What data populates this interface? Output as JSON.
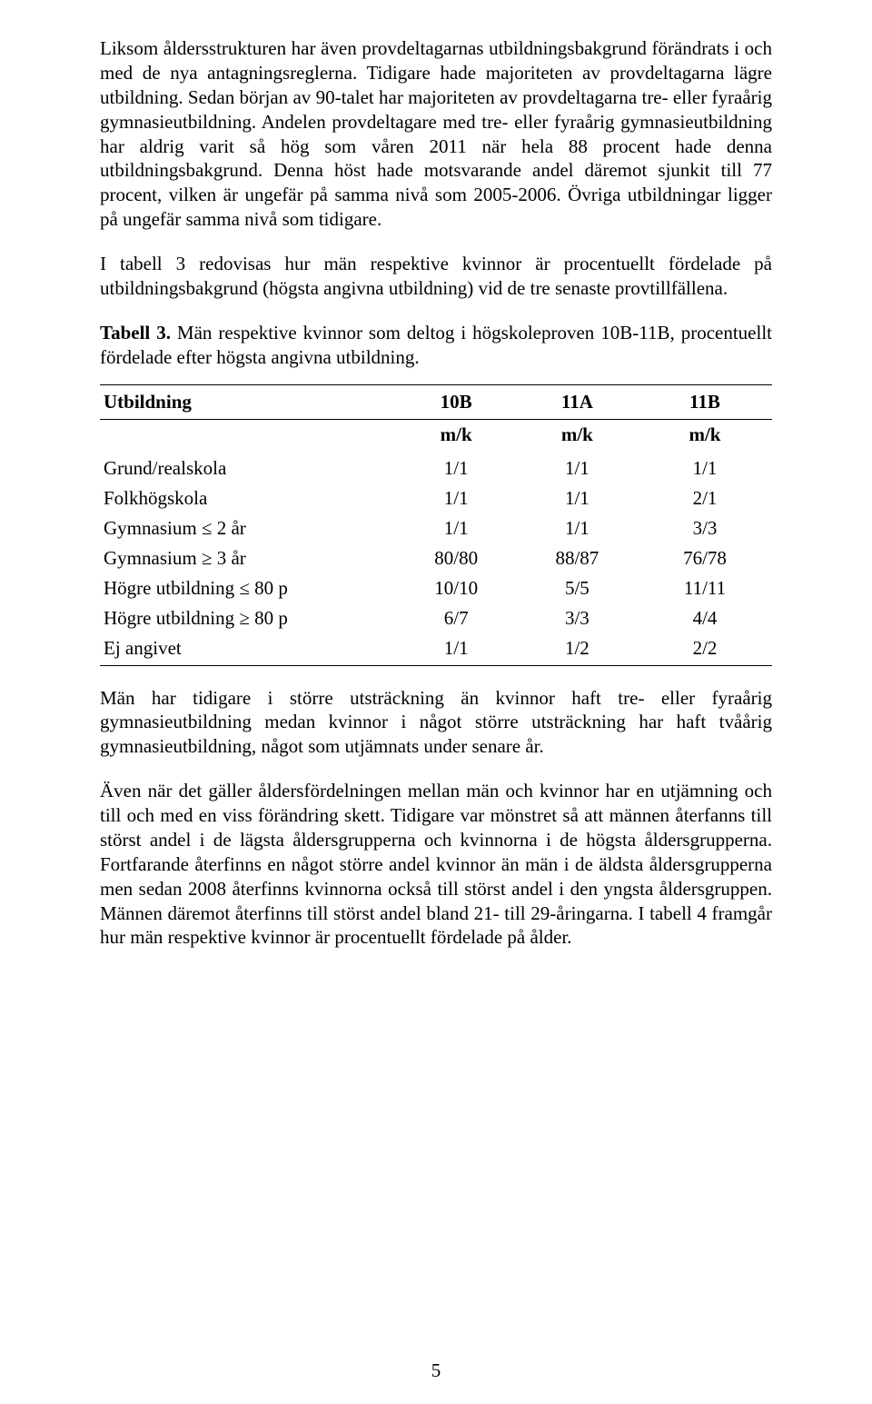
{
  "paragraphs": {
    "p1": "Liksom åldersstrukturen har även provdeltagarnas utbildningsbakgrund förändrats i och med de nya antagningsreglerna. Tidigare hade majoriteten av provdeltagarna lägre utbildning. Sedan början av 90-talet har majoriteten av provdeltagarna tre- eller fyraårig gymnasieutbildning. Andelen provdeltagare med tre- eller fyraårig gymnasieutbildning har aldrig varit så hög som våren 2011 när hela 88 procent hade denna utbildningsbakgrund. Denna höst hade motsvarande andel däremot sjunkit till 77 procent, vilken är ungefär på samma nivå som 2005-2006. Övriga utbildningar ligger på ungefär samma nivå som tidigare.",
    "p2": "I tabell 3 redovisas hur män respektive kvinnor är procentuellt fördelade på utbildningsbakgrund (högsta angivna utbildning) vid de tre senaste provtillfällena.",
    "p3": "Män har tidigare i större utsträckning än kvinnor haft tre- eller fyraårig gymnasieutbildning medan kvinnor i något större utsträckning har haft tvåårig gymnasieutbildning, något som utjämnats under senare år.",
    "p4": "Även när det gäller åldersfördelningen mellan män och kvinnor har en utjämning och till och med en viss förändring skett. Tidigare var mönstret så att männen återfanns till störst andel i de lägsta åldersgrupperna och kvinnorna i de högsta åldersgrupperna. Fortfarande återfinns en något större andel kvinnor än män i de äldsta åldersgrupperna men sedan 2008 återfinns kvinnorna också till störst andel i den yngsta åldersgruppen. Männen däremot återfinns till störst andel bland 21- till 29-åringarna. I tabell 4 framgår hur män respektive kvinnor är procentuellt fördelade på ålder."
  },
  "table_caption": {
    "label": "Tabell 3.",
    "text": " Män respektive kvinnor som deltog i högskoleproven 10B-11B, procentuellt fördelade efter högsta angivna utbildning."
  },
  "table": {
    "header_label": "Utbildning",
    "columns": [
      "10B",
      "11A",
      "11B"
    ],
    "subheader": "m/k",
    "rows": [
      {
        "label": "Grund/realskola",
        "vals": [
          "1/1",
          "1/1",
          "1/1"
        ]
      },
      {
        "label": "Folkhögskola",
        "vals": [
          "1/1",
          "1/1",
          "2/1"
        ]
      },
      {
        "label": "Gymnasium ≤ 2 år",
        "vals": [
          "1/1",
          "1/1",
          "3/3"
        ]
      },
      {
        "label": "Gymnasium ≥ 3 år",
        "vals": [
          "80/80",
          "88/87",
          "76/78"
        ]
      },
      {
        "label": "Högre utbildning ≤ 80 p",
        "vals": [
          "10/10",
          "5/5",
          "11/11"
        ]
      },
      {
        "label": "Högre utbildning ≥ 80 p",
        "vals": [
          "6/7",
          "3/3",
          "4/4"
        ]
      },
      {
        "label": "Ej angivet",
        "vals": [
          "1/1",
          "1/2",
          "2/2"
        ]
      }
    ]
  },
  "page_number": "5"
}
